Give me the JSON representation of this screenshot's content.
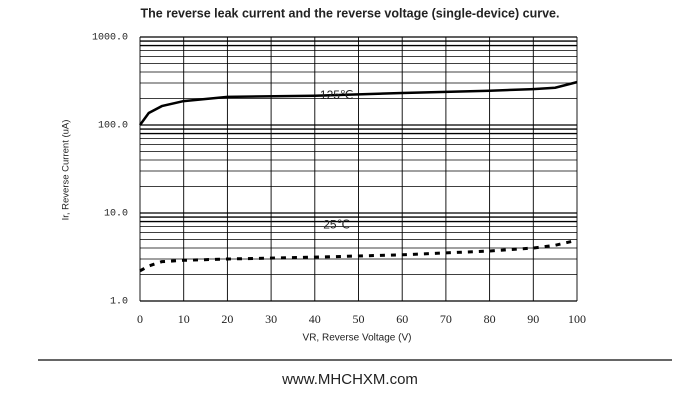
{
  "chart_data": {
    "type": "line",
    "title": "The reverse leak current and the reverse voltage (single-device) curve.",
    "x_label": "VR, Reverse Voltage (V)",
    "y_label": "Ir, Reverse Current (uA)",
    "log_y": true,
    "grid": true,
    "xlim": [
      0,
      100
    ],
    "xticks": [
      0,
      10,
      20,
      30,
      40,
      50,
      60,
      70,
      80,
      90,
      100
    ],
    "ylim": [
      1,
      1000
    ],
    "yticks": [
      {
        "value": 1,
        "label": "1.0"
      },
      {
        "value": 10,
        "label": "10.0"
      },
      {
        "value": 100,
        "label": "100.0"
      },
      {
        "value": 1000,
        "label": "1000.0"
      }
    ],
    "x": [
      0,
      2,
      5,
      10,
      20,
      40,
      60,
      80,
      90,
      95,
      100
    ],
    "series": [
      {
        "name": "125℃",
        "color": "#000000",
        "dash": false,
        "values": [
          100,
          137,
          164,
          187,
          209,
          215,
          231,
          245,
          256,
          265,
          307
        ]
      },
      {
        "name": "25℃",
        "color": "#000000",
        "dash": true,
        "values": [
          2.2,
          2.5,
          2.8,
          2.9,
          3.0,
          3.15,
          3.35,
          3.7,
          4.0,
          4.3,
          4.9
        ]
      }
    ],
    "footer": "www.MHCHXM.com"
  }
}
